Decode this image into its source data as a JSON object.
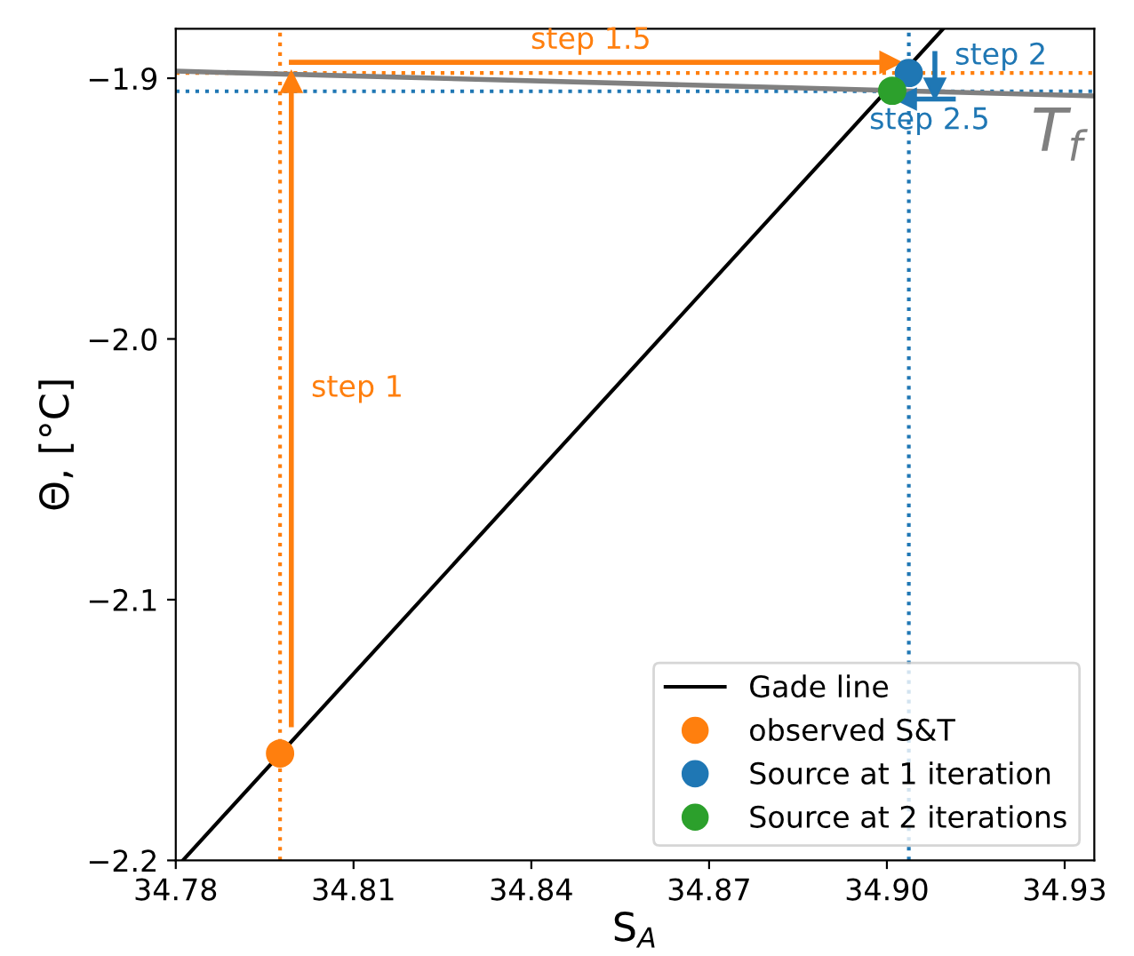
{
  "chart_data": {
    "type": "line",
    "xlabel": "S$_{A}$",
    "ylabel": "Θ, [°C]",
    "xlim": [
      34.78,
      34.935
    ],
    "ylim": [
      -2.2,
      -1.881
    ],
    "xticks": [
      34.78,
      34.81,
      34.84,
      34.87,
      {
        "value": 34.9,
        "label": "34.90"
      },
      34.93
    ],
    "yticks": [
      {
        "value": -2.2,
        "label": "−2.2"
      },
      {
        "value": -2.1,
        "label": "−2.1"
      },
      {
        "value": -2.0,
        "label": "−2.0"
      },
      {
        "value": -1.9,
        "label": "−1.9"
      }
    ],
    "grid": false,
    "legend": "bottom right",
    "ref_lines": [
      {
        "axis": "x",
        "value": 34.7976,
        "color": "#ff7f0e",
        "line_style": "dotted"
      },
      {
        "axis": "y",
        "value": -1.898,
        "color": "#ff7f0e",
        "line_style": "dotted"
      },
      {
        "axis": "x",
        "value": 34.9037,
        "color": "#1f77b4",
        "line_style": "dotted"
      },
      {
        "axis": "y",
        "value": -1.905,
        "color": "#1f77b4",
        "line_style": "dotted"
      }
    ],
    "series": [
      {
        "name": "Gade line",
        "color": "#000000",
        "x": [
          34.7812,
          34.9095
        ],
        "values": [
          -2.2,
          -1.881
        ]
      },
      {
        "name": "T$_{f}$",
        "marker": "none",
        "color": "#808080",
        "x": [
          34.78,
          34.935
        ],
        "values": [
          -1.8973,
          -1.9068
        ]
      },
      {
        "name": "step 1",
        "marker": "triangle",
        "color": "#ff7f0e",
        "x": [
          34.7995,
          34.7995
        ],
        "values": [
          -2.148,
          -1.9014
        ]
      },
      {
        "name": "step 1.5",
        "marker": "triangle",
        "color": "#ff7f0e",
        "x": [
          34.7995,
          34.9006
        ],
        "values": [
          -1.8939,
          -1.8939
        ]
      },
      {
        "name": "step 2",
        "marker": "triangle",
        "color": "#1f77b4",
        "x": [
          34.9081,
          34.9081
        ],
        "values": [
          -1.8905,
          -1.904
        ]
      },
      {
        "name": "step 2.5",
        "marker": "triangle",
        "color": "#1f77b4",
        "x": [
          34.9112,
          34.9032
        ],
        "values": [
          -1.908,
          -1.908
        ]
      },
      {
        "name": "observed S&T",
        "type": "scatter",
        "color": "#ff7f0e",
        "x": [
          34.7976
        ],
        "values": [
          -2.159
        ]
      },
      {
        "name": "Source at 1 iteration",
        "type": "scatter",
        "color": "#1f77b4",
        "x": [
          34.9037
        ],
        "values": [
          -1.898
        ]
      },
      {
        "name": "Source at 2 iterations",
        "type": "scatter",
        "color": "#2ca02c",
        "x": [
          34.9009
        ],
        "values": [
          -1.9048
        ]
      }
    ]
  }
}
